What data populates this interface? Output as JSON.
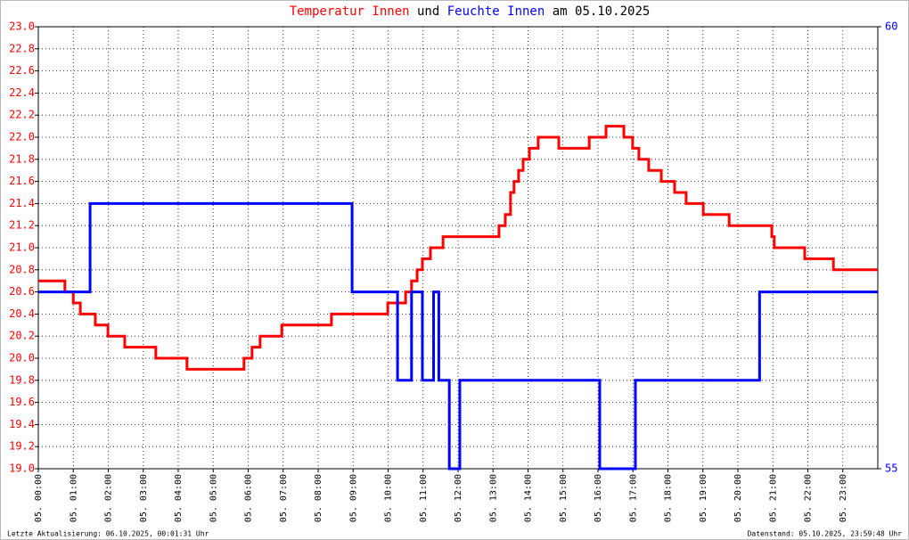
{
  "chart_data": {
    "type": "line",
    "title_connector": "und",
    "title_date": "am 05.10.2025",
    "footer_left": "Letzte Aktualisierung: 06.10.2025, 00:01:31 Uhr",
    "footer_right": "Datenstand: 05.10.2025, 23:59:48 Uhr",
    "grid": true,
    "xlim": [
      0,
      24
    ],
    "xticks": [
      {
        "value": 0,
        "label": "05. 00:00"
      },
      {
        "value": 1,
        "label": "05. 01:00"
      },
      {
        "value": 2,
        "label": "05. 02:00"
      },
      {
        "value": 3,
        "label": "05. 03:00"
      },
      {
        "value": 4,
        "label": "05. 04:00"
      },
      {
        "value": 5,
        "label": "05. 05:00"
      },
      {
        "value": 6,
        "label": "05. 06:00"
      },
      {
        "value": 7,
        "label": "05. 07:00"
      },
      {
        "value": 8,
        "label": "05. 08:00"
      },
      {
        "value": 9,
        "label": "05. 09:00"
      },
      {
        "value": 10,
        "label": "05. 10:00"
      },
      {
        "value": 11,
        "label": "05. 11:00"
      },
      {
        "value": 12,
        "label": "05. 12:00"
      },
      {
        "value": 13,
        "label": "05. 13:00"
      },
      {
        "value": 14,
        "label": "05. 14:00"
      },
      {
        "value": 15,
        "label": "05. 15:00"
      },
      {
        "value": 16,
        "label": "05. 16:00"
      },
      {
        "value": 17,
        "label": "05. 17:00"
      },
      {
        "value": 18,
        "label": "05. 18:00"
      },
      {
        "value": 19,
        "label": "05. 19:00"
      },
      {
        "value": 20,
        "label": "05. 20:00"
      },
      {
        "value": 21,
        "label": "05. 21:00"
      },
      {
        "value": 22,
        "label": "05. 22:00"
      },
      {
        "value": 23,
        "label": "05. 23:00"
      }
    ],
    "ylim": [
      19,
      23
    ],
    "yticks": [
      {
        "value": 19,
        "label": "19.0"
      },
      19.2,
      19.4,
      19.6,
      19.8,
      {
        "value": 20,
        "label": "20.0"
      },
      20.2,
      20.4,
      20.6,
      20.8,
      {
        "value": 21,
        "label": "21.0"
      },
      21.2,
      21.4,
      21.6,
      21.8,
      {
        "value": 22,
        "label": "22.0"
      },
      22.2,
      22.4,
      22.6,
      22.8,
      {
        "value": 23,
        "label": "23.0"
      }
    ],
    "y2lim": [
      55,
      60
    ],
    "y2ticks": [
      55,
      60
    ],
    "series": [
      {
        "name": "Temperatur Innen",
        "color": "#ff0000",
        "x": [
          0,
          0.76,
          0.76,
          1.0,
          1.0,
          1.2,
          1.2,
          1.63,
          1.63,
          1.99,
          1.99,
          2.47,
          2.47,
          3.36,
          3.36,
          4.25,
          4.25,
          5.88,
          5.88,
          6.11,
          6.11,
          6.34,
          6.34,
          6.96,
          6.96,
          8.38,
          8.38,
          9.99,
          9.99,
          10.5,
          10.5,
          10.67,
          10.67,
          10.83,
          10.83,
          10.98,
          10.98,
          11.21,
          11.21,
          11.57,
          11.57,
          13.17,
          13.17,
          13.35,
          13.35,
          13.5,
          13.5,
          13.6,
          13.6,
          13.73,
          13.73,
          13.86,
          13.86,
          14.04,
          14.04,
          14.29,
          14.29,
          14.88,
          14.88,
          15.75,
          15.75,
          16.23,
          16.23,
          16.74,
          16.74,
          16.99,
          16.99,
          17.17,
          17.17,
          17.45,
          17.45,
          17.81,
          17.81,
          18.19,
          18.19,
          18.52,
          18.52,
          19.01,
          19.01,
          19.75,
          19.75,
          20.97,
          20.97,
          21.04,
          21.04,
          21.91,
          21.91,
          22.73,
          22.73,
          24
        ],
        "values": [
          20.7,
          20.7,
          20.6,
          20.6,
          20.5,
          20.5,
          20.4,
          20.4,
          20.3,
          20.3,
          20.2,
          20.2,
          20.1,
          20.1,
          20.0,
          20.0,
          19.9,
          19.9,
          20.0,
          20.0,
          20.1,
          20.1,
          20.2,
          20.2,
          20.3,
          20.3,
          20.4,
          20.4,
          20.5,
          20.5,
          20.6,
          20.6,
          20.7,
          20.7,
          20.8,
          20.8,
          20.9,
          20.9,
          21.0,
          21.0,
          21.1,
          21.1,
          21.2,
          21.2,
          21.3,
          21.3,
          21.5,
          21.5,
          21.6,
          21.6,
          21.7,
          21.7,
          21.8,
          21.8,
          21.9,
          21.9,
          22.0,
          22.0,
          21.9,
          21.9,
          22.0,
          22.0,
          22.1,
          22.1,
          22.0,
          22.0,
          21.9,
          21.9,
          21.8,
          21.8,
          21.7,
          21.7,
          21.6,
          21.6,
          21.5,
          21.5,
          21.4,
          21.4,
          21.3,
          21.3,
          21.2,
          21.2,
          21.1,
          21.1,
          21.0,
          21.0,
          20.9,
          20.9,
          20.8,
          20.8
        ]
      },
      {
        "name": "Feuchte Innen",
        "color": "#0000ff",
        "axis": "y2",
        "x": [
          0,
          1.48,
          1.48,
          8.97,
          8.97,
          10.27,
          10.27,
          10.67,
          10.67,
          10.98,
          10.98,
          11.3,
          11.3,
          11.45,
          11.45,
          11.75,
          11.75,
          12.05,
          12.05,
          16.05,
          16.05,
          17.07,
          17.07,
          20.62,
          20.62,
          24
        ],
        "values": [
          57,
          57,
          58,
          58,
          57,
          57,
          56,
          56,
          57,
          57,
          56,
          56,
          57,
          57,
          56,
          56,
          55,
          55,
          56,
          56,
          55,
          55,
          56,
          56,
          57,
          57
        ]
      }
    ]
  }
}
